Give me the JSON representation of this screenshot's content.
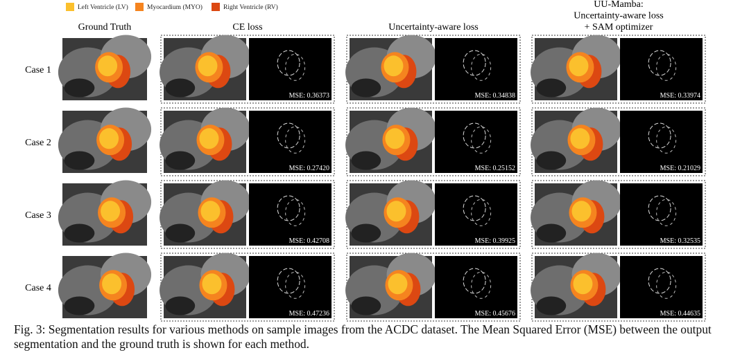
{
  "legend": [
    {
      "label": "Left Ventricle (LV)",
      "color": "#fbc02d"
    },
    {
      "label": "Myocardium (MYO)",
      "color": "#f5841f"
    },
    {
      "label": "Right Ventricle (RV)",
      "color": "#dc4812"
    }
  ],
  "ground_truth": "Ground Truth",
  "methods": [
    {
      "title": [
        "CE loss"
      ]
    },
    {
      "title": [
        "Uncertainty-aware loss"
      ]
    },
    {
      "title": [
        "UU-Mamba:",
        "Uncertainty-aware loss",
        "+ SAM optimizer"
      ]
    }
  ],
  "rows": [
    {
      "label": "Case 1",
      "mse": [
        "MSE: 0.36373",
        "MSE: 0.34838",
        "MSE: 0.33974"
      ]
    },
    {
      "label": "Case 2",
      "mse": [
        "MSE: 0.27420",
        "MSE: 0.25152",
        "MSE: 0.21029"
      ]
    },
    {
      "label": "Case 3",
      "mse": [
        "MSE: 0.42708",
        "MSE: 0.39925",
        "MSE: 0.32535"
      ]
    },
    {
      "label": "Case 4",
      "mse": [
        "MSE: 0.47236",
        "MSE: 0.45676",
        "MSE: 0.44635"
      ]
    }
  ],
  "caption": "Fig. 3: Segmentation results for various methods on sample images from the ACDC dataset. The Mean Squared Error (MSE) between the output segmentation and the ground truth is shown for each method."
}
